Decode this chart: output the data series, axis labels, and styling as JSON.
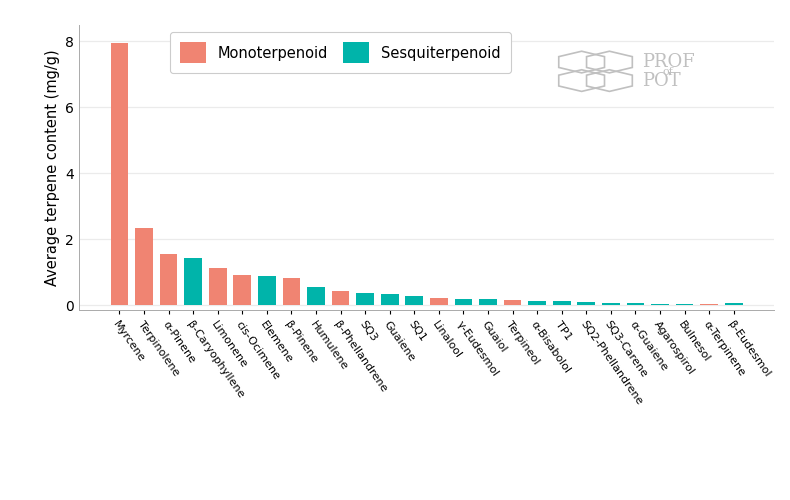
{
  "categories": [
    "Myrcene",
    "Terpinolene",
    "α-Pinene",
    "β-Caryophyllene",
    "Limonene",
    "cis-Ocimene",
    "Elemene",
    "β-Pinene",
    "Humulene",
    "β-Phellandrene",
    "SQ3",
    "Guaiene",
    "SQ1",
    "Linalool",
    "γ-Eudesmol",
    "Guaiol",
    "Terpineol",
    "α-Bisabolol",
    "TP1",
    "SQ2-Phellandrene",
    "SQ3-Carene",
    "α-Guaiene",
    "Agarospirol",
    "Bulnesol",
    "α-Terpinene",
    "β-Eudesmol"
  ],
  "values": [
    7.95,
    2.33,
    1.55,
    1.42,
    1.12,
    0.92,
    0.87,
    0.82,
    0.55,
    0.42,
    0.38,
    0.35,
    0.27,
    0.21,
    0.18,
    0.17,
    0.14,
    0.13,
    0.12,
    0.1,
    0.06,
    0.05,
    0.04,
    0.04,
    0.03,
    0.05
  ],
  "types": [
    "mono",
    "mono",
    "mono",
    "sesqui",
    "mono",
    "mono",
    "sesqui",
    "mono",
    "sesqui",
    "mono",
    "sesqui",
    "sesqui",
    "sesqui",
    "mono",
    "sesqui",
    "sesqui",
    "mono",
    "sesqui",
    "sesqui",
    "sesqui",
    "sesqui",
    "sesqui",
    "sesqui",
    "sesqui",
    "mono",
    "sesqui"
  ],
  "mono_color": "#F08472",
  "sesqui_color": "#00B4AA",
  "ylabel": "Average terpene content (mg/g)",
  "ylim": [
    -0.15,
    8.5
  ],
  "yticks": [
    0,
    2,
    4,
    6,
    8
  ],
  "background_color": "#ffffff"
}
